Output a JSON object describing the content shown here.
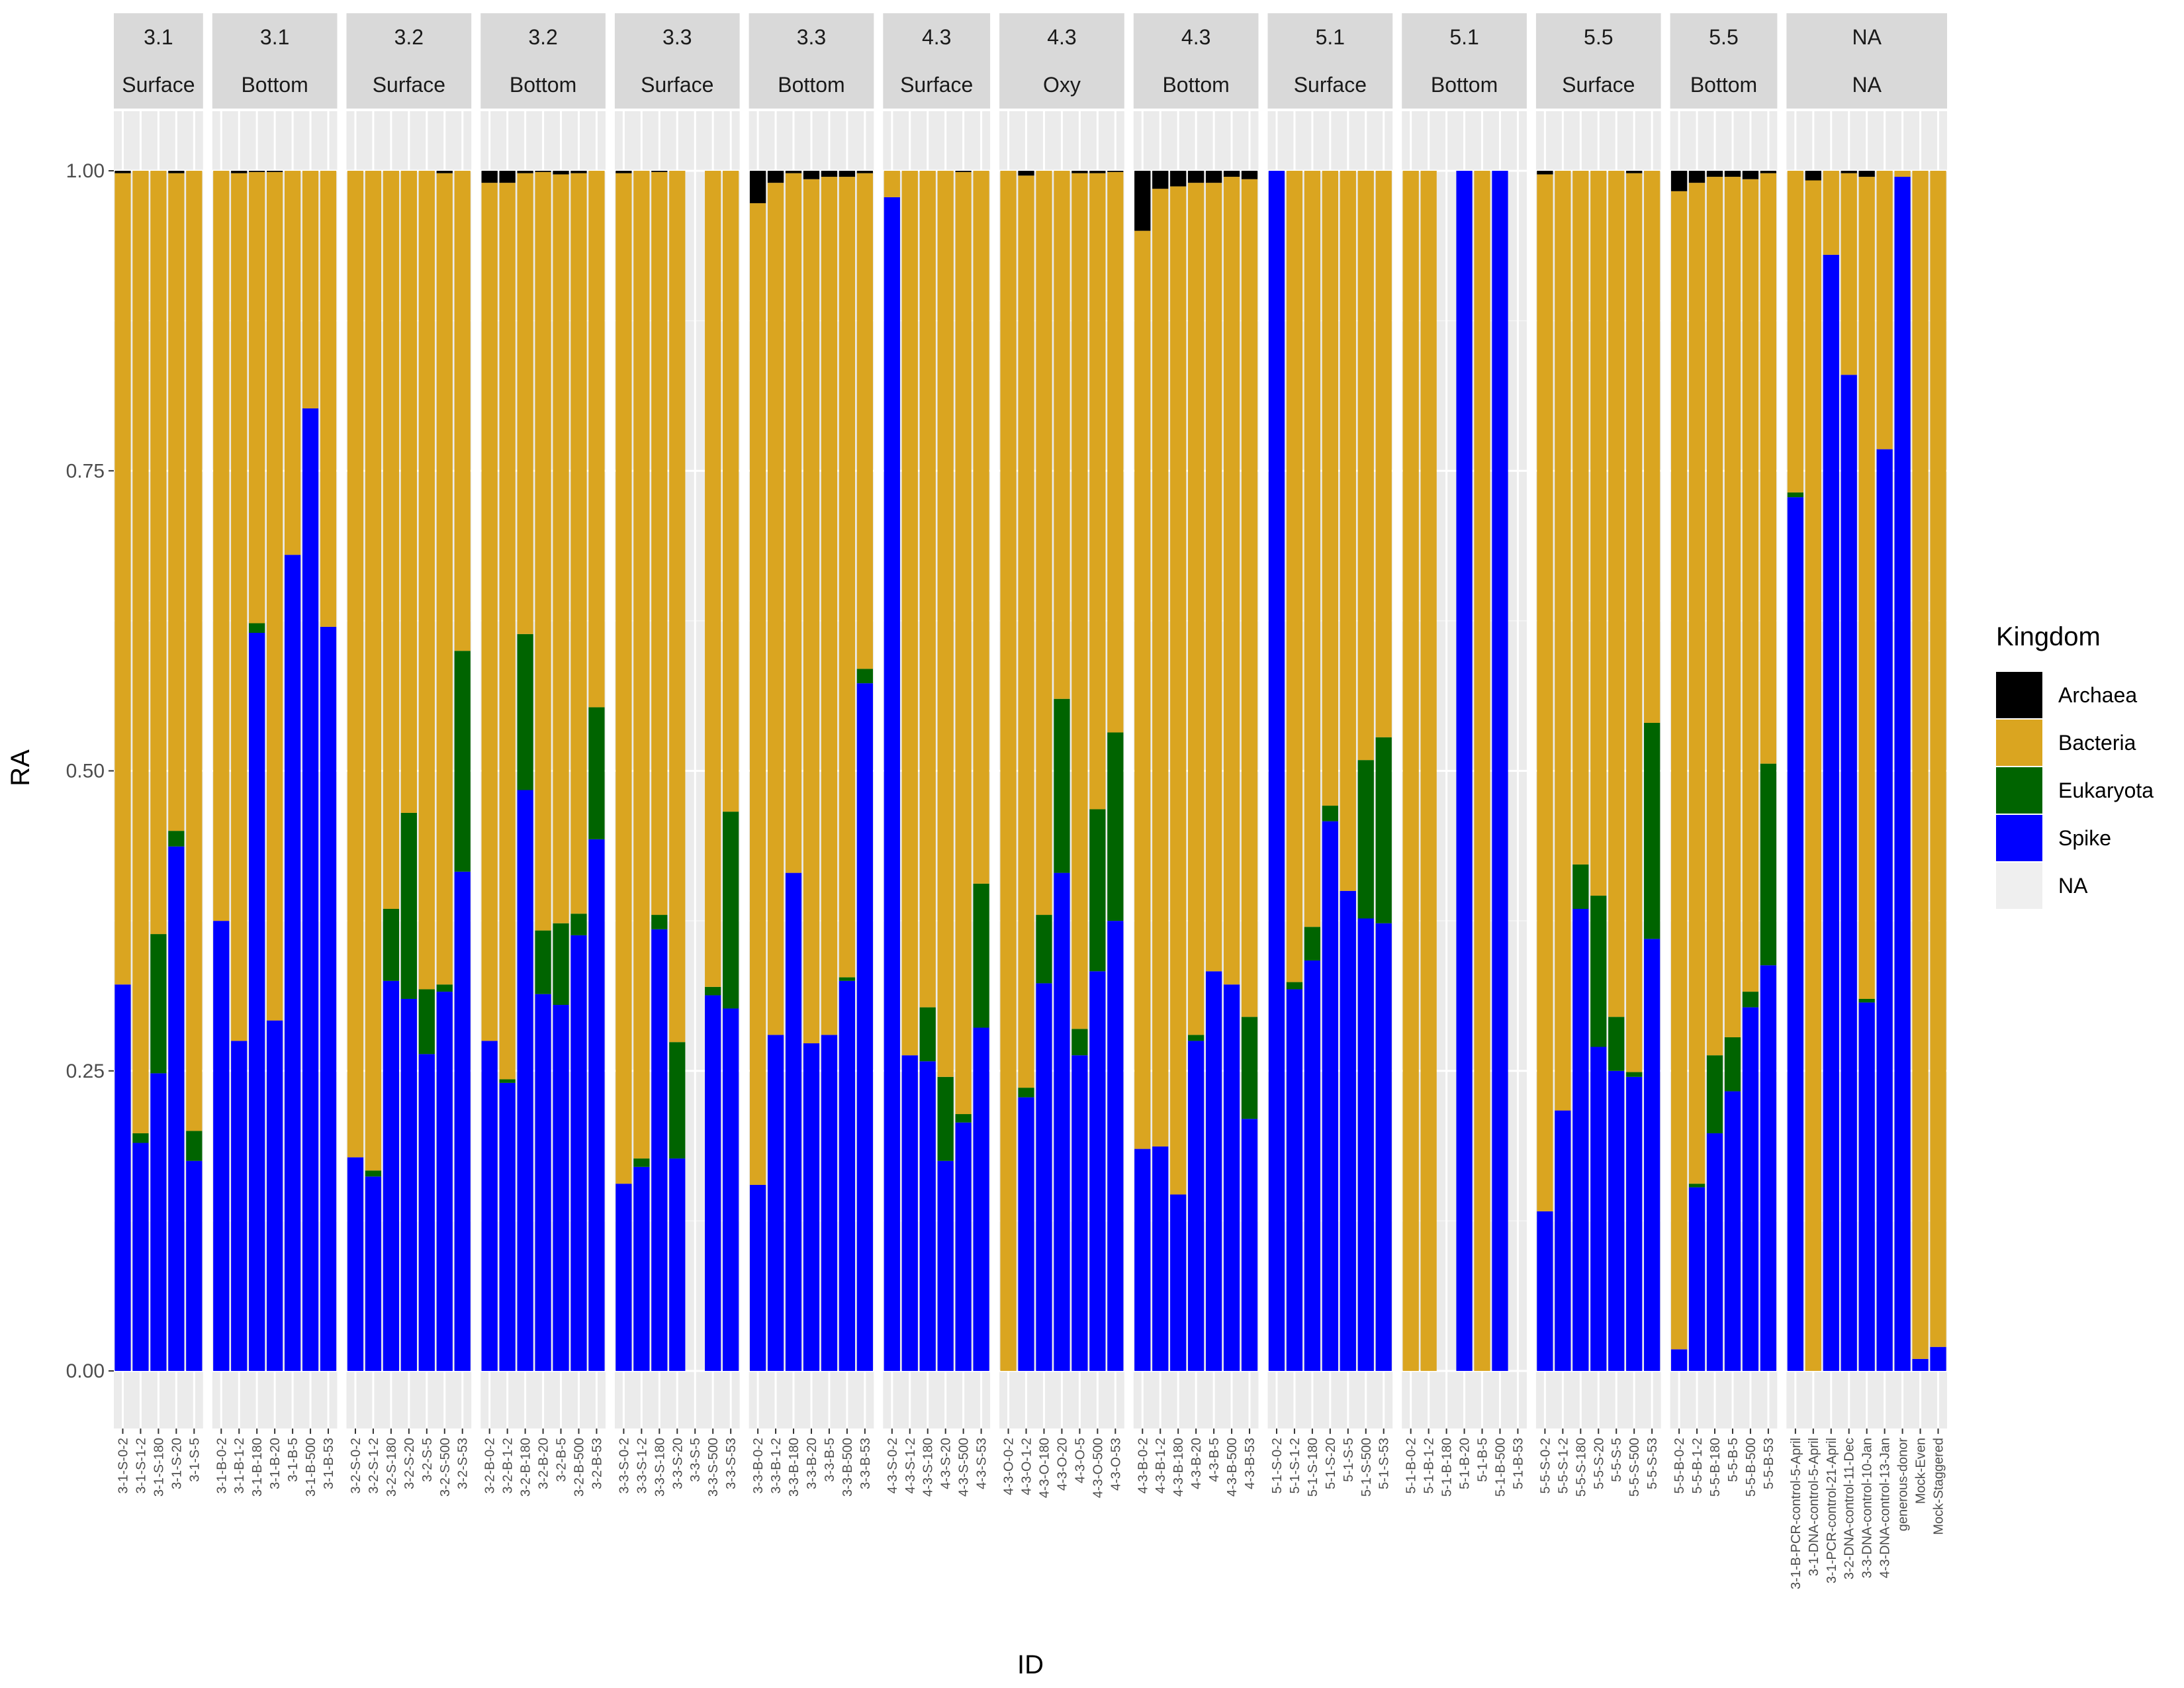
{
  "chart_data": {
    "type": "bar",
    "stacked": true,
    "faceted": true,
    "xlabel": "ID",
    "ylabel": "RA",
    "ylim": [
      -0.1,
      1.05
    ],
    "yticks": [
      0.0,
      0.25,
      0.5,
      0.75,
      1.0
    ],
    "ytick_labels": [
      "0.00",
      "0.25",
      "0.50",
      "0.75",
      "1.00"
    ],
    "grid": true,
    "legend": {
      "title": "Kingdom",
      "position": "right",
      "entries": [
        {
          "name": "Archaea",
          "color": "#000000"
        },
        {
          "name": "Bacteria",
          "color": "#DAA520"
        },
        {
          "name": "Eukaryota",
          "color": "#006400"
        },
        {
          "name": "Spike",
          "color": "#0000FF"
        },
        {
          "name": "NA",
          "color": "#EFEFEF"
        }
      ]
    },
    "stack_order": [
      "Spike",
      "Eukaryota",
      "Bacteria",
      "Archaea"
    ],
    "panels": [
      {
        "strip1": "3.1",
        "strip2": "Surface",
        "samples": [
          {
            "id": "3-1-S-0-2",
            "Spike": 0.322,
            "Eukaryota": 0.0,
            "Bacteria": 0.676,
            "Archaea": 0.002
          },
          {
            "id": "3-1-S-1-2",
            "Spike": 0.19,
            "Eukaryota": 0.008,
            "Bacteria": 0.802,
            "Archaea": 0.0
          },
          {
            "id": "3-1-S-180",
            "Spike": 0.248,
            "Eukaryota": 0.116,
            "Bacteria": 0.636,
            "Archaea": 0.0
          },
          {
            "id": "3-1-S-20",
            "Spike": 0.437,
            "Eukaryota": 0.013,
            "Bacteria": 0.548,
            "Archaea": 0.002
          },
          {
            "id": "3-1-S-5",
            "Spike": 0.175,
            "Eukaryota": 0.025,
            "Bacteria": 0.8,
            "Archaea": 0.0
          }
        ]
      },
      {
        "strip1": "3.1",
        "strip2": "Bottom",
        "samples": [
          {
            "id": "3-1-B-0-2",
            "Spike": 0.375,
            "Eukaryota": 0.0,
            "Bacteria": 0.625,
            "Archaea": 0.0
          },
          {
            "id": "3-1-B-1-2",
            "Spike": 0.275,
            "Eukaryota": 0.0,
            "Bacteria": 0.723,
            "Archaea": 0.002
          },
          {
            "id": "3-1-B-180",
            "Spike": 0.615,
            "Eukaryota": 0.008,
            "Bacteria": 0.376,
            "Archaea": 0.001
          },
          {
            "id": "3-1-B-20",
            "Spike": 0.292,
            "Eukaryota": 0.0,
            "Bacteria": 0.707,
            "Archaea": 0.001
          },
          {
            "id": "3-1-B-5",
            "Spike": 0.68,
            "Eukaryota": 0.0,
            "Bacteria": 0.32,
            "Archaea": 0.0
          },
          {
            "id": "3-1-B-500",
            "Spike": 0.802,
            "Eukaryota": 0.0,
            "Bacteria": 0.198,
            "Archaea": 0.0
          },
          {
            "id": "3-1-B-53",
            "Spike": 0.62,
            "Eukaryota": 0.0,
            "Bacteria": 0.38,
            "Archaea": 0.0
          }
        ]
      },
      {
        "strip1": "3.2",
        "strip2": "Surface",
        "samples": [
          {
            "id": "3-2-S-0-2",
            "Spike": 0.178,
            "Eukaryota": 0.0,
            "Bacteria": 0.822,
            "Archaea": 0.0
          },
          {
            "id": "3-2-S-1-2",
            "Spike": 0.162,
            "Eukaryota": 0.005,
            "Bacteria": 0.833,
            "Archaea": 0.0
          },
          {
            "id": "3-2-S-180",
            "Spike": 0.325,
            "Eukaryota": 0.06,
            "Bacteria": 0.615,
            "Archaea": 0.0
          },
          {
            "id": "3-2-S-20",
            "Spike": 0.31,
            "Eukaryota": 0.155,
            "Bacteria": 0.535,
            "Archaea": 0.0
          },
          {
            "id": "3-2-S-5",
            "Spike": 0.264,
            "Eukaryota": 0.054,
            "Bacteria": 0.682,
            "Archaea": 0.0
          },
          {
            "id": "3-2-S-500",
            "Spike": 0.316,
            "Eukaryota": 0.006,
            "Bacteria": 0.676,
            "Archaea": 0.002
          },
          {
            "id": "3-2-S-53",
            "Spike": 0.416,
            "Eukaryota": 0.184,
            "Bacteria": 0.4,
            "Archaea": 0.0
          }
        ]
      },
      {
        "strip1": "3.2",
        "strip2": "Bottom",
        "samples": [
          {
            "id": "3-2-B-0-2",
            "Spike": 0.275,
            "Eukaryota": 0.0,
            "Bacteria": 0.715,
            "Archaea": 0.01
          },
          {
            "id": "3-2-B-1-2",
            "Spike": 0.24,
            "Eukaryota": 0.003,
            "Bacteria": 0.747,
            "Archaea": 0.01
          },
          {
            "id": "3-2-B-180",
            "Spike": 0.484,
            "Eukaryota": 0.13,
            "Bacteria": 0.384,
            "Archaea": 0.002
          },
          {
            "id": "3-2-B-20",
            "Spike": 0.314,
            "Eukaryota": 0.053,
            "Bacteria": 0.632,
            "Archaea": 0.001
          },
          {
            "id": "3-2-B-5",
            "Spike": 0.305,
            "Eukaryota": 0.068,
            "Bacteria": 0.624,
            "Archaea": 0.003
          },
          {
            "id": "3-2-B-500",
            "Spike": 0.363,
            "Eukaryota": 0.018,
            "Bacteria": 0.617,
            "Archaea": 0.002
          },
          {
            "id": "3-2-B-53",
            "Spike": 0.443,
            "Eukaryota": 0.11,
            "Bacteria": 0.447,
            "Archaea": 0.0
          }
        ]
      },
      {
        "strip1": "3.3",
        "strip2": "Surface",
        "samples": [
          {
            "id": "3-3-S-0-2",
            "Spike": 0.156,
            "Eukaryota": 0.0,
            "Bacteria": 0.842,
            "Archaea": 0.002
          },
          {
            "id": "3-3-S-1-2",
            "Spike": 0.17,
            "Eukaryota": 0.007,
            "Bacteria": 0.823,
            "Archaea": 0.0
          },
          {
            "id": "3-3-S-180",
            "Spike": 0.368,
            "Eukaryota": 0.012,
            "Bacteria": 0.619,
            "Archaea": 0.001
          },
          {
            "id": "3-3-S-20",
            "Spike": 0.177,
            "Eukaryota": 0.097,
            "Bacteria": 0.726,
            "Archaea": 0.0
          },
          {
            "id": "3-3-S-5",
            "Spike": 0.0,
            "Eukaryota": 0.0,
            "Bacteria": 0.0,
            "Archaea": 0.0
          },
          {
            "id": "3-3-S-500",
            "Spike": 0.313,
            "Eukaryota": 0.007,
            "Bacteria": 0.68,
            "Archaea": 0.0
          },
          {
            "id": "3-3-S-53",
            "Spike": 0.302,
            "Eukaryota": 0.164,
            "Bacteria": 0.534,
            "Archaea": 0.0
          }
        ]
      },
      {
        "strip1": "3.3",
        "strip2": "Bottom",
        "samples": [
          {
            "id": "3-3-B-0-2",
            "Spike": 0.155,
            "Eukaryota": 0.0,
            "Bacteria": 0.818,
            "Archaea": 0.027
          },
          {
            "id": "3-3-B-1-2",
            "Spike": 0.28,
            "Eukaryota": 0.0,
            "Bacteria": 0.71,
            "Archaea": 0.01
          },
          {
            "id": "3-3-B-180",
            "Spike": 0.415,
            "Eukaryota": 0.0,
            "Bacteria": 0.583,
            "Archaea": 0.002
          },
          {
            "id": "3-3-B-20",
            "Spike": 0.273,
            "Eukaryota": 0.0,
            "Bacteria": 0.72,
            "Archaea": 0.007
          },
          {
            "id": "3-3-B-5",
            "Spike": 0.28,
            "Eukaryota": 0.0,
            "Bacteria": 0.715,
            "Archaea": 0.005
          },
          {
            "id": "3-3-B-500",
            "Spike": 0.325,
            "Eukaryota": 0.003,
            "Bacteria": 0.667,
            "Archaea": 0.005
          },
          {
            "id": "3-3-B-53",
            "Spike": 0.573,
            "Eukaryota": 0.012,
            "Bacteria": 0.413,
            "Archaea": 0.002
          }
        ]
      },
      {
        "strip1": "4.3",
        "strip2": "Surface",
        "samples": [
          {
            "id": "4-3-S-0-2",
            "Spike": 0.978,
            "Eukaryota": 0.0,
            "Bacteria": 0.022,
            "Archaea": 0.0
          },
          {
            "id": "4-3-S-1-2",
            "Spike": 0.263,
            "Eukaryota": 0.0,
            "Bacteria": 0.737,
            "Archaea": 0.0
          },
          {
            "id": "4-3-S-180",
            "Spike": 0.258,
            "Eukaryota": 0.045,
            "Bacteria": 0.697,
            "Archaea": 0.0
          },
          {
            "id": "4-3-S-20",
            "Spike": 0.175,
            "Eukaryota": 0.07,
            "Bacteria": 0.755,
            "Archaea": 0.0
          },
          {
            "id": "4-3-S-500",
            "Spike": 0.207,
            "Eukaryota": 0.007,
            "Bacteria": 0.785,
            "Archaea": 0.001
          },
          {
            "id": "4-3-S-53",
            "Spike": 0.286,
            "Eukaryota": 0.12,
            "Bacteria": 0.594,
            "Archaea": 0.0
          }
        ]
      },
      {
        "strip1": "4.3",
        "strip2": "Oxy",
        "samples": [
          {
            "id": "4-3-O-0-2",
            "Spike": 0.0,
            "Eukaryota": 0.0,
            "Bacteria": 1.0,
            "Archaea": 0.0
          },
          {
            "id": "4-3-O-1-2",
            "Spike": 0.228,
            "Eukaryota": 0.008,
            "Bacteria": 0.76,
            "Archaea": 0.004
          },
          {
            "id": "4-3-O-180",
            "Spike": 0.323,
            "Eukaryota": 0.057,
            "Bacteria": 0.62,
            "Archaea": 0.0
          },
          {
            "id": "4-3-O-20",
            "Spike": 0.415,
            "Eukaryota": 0.145,
            "Bacteria": 0.44,
            "Archaea": 0.0
          },
          {
            "id": "4-3-O-5",
            "Spike": 0.263,
            "Eukaryota": 0.022,
            "Bacteria": 0.713,
            "Archaea": 0.002
          },
          {
            "id": "4-3-O-500",
            "Spike": 0.333,
            "Eukaryota": 0.135,
            "Bacteria": 0.53,
            "Archaea": 0.002
          },
          {
            "id": "4-3-O-53",
            "Spike": 0.375,
            "Eukaryota": 0.157,
            "Bacteria": 0.467,
            "Archaea": 0.001
          }
        ]
      },
      {
        "strip1": "4.3",
        "strip2": "Bottom",
        "samples": [
          {
            "id": "4-3-B-0-2",
            "Spike": 0.185,
            "Eukaryota": 0.0,
            "Bacteria": 0.765,
            "Archaea": 0.05
          },
          {
            "id": "4-3-B-1-2",
            "Spike": 0.187,
            "Eukaryota": 0.0,
            "Bacteria": 0.798,
            "Archaea": 0.015
          },
          {
            "id": "4-3-B-180",
            "Spike": 0.147,
            "Eukaryota": 0.0,
            "Bacteria": 0.84,
            "Archaea": 0.013
          },
          {
            "id": "4-3-B-20",
            "Spike": 0.275,
            "Eukaryota": 0.005,
            "Bacteria": 0.71,
            "Archaea": 0.01
          },
          {
            "id": "4-3-B-5",
            "Spike": 0.333,
            "Eukaryota": 0.0,
            "Bacteria": 0.657,
            "Archaea": 0.01
          },
          {
            "id": "4-3-B-500",
            "Spike": 0.322,
            "Eukaryota": 0.0,
            "Bacteria": 0.673,
            "Archaea": 0.005
          },
          {
            "id": "4-3-B-53",
            "Spike": 0.21,
            "Eukaryota": 0.085,
            "Bacteria": 0.698,
            "Archaea": 0.007
          }
        ]
      },
      {
        "strip1": "5.1",
        "strip2": "Surface",
        "samples": [
          {
            "id": "5-1-S-0-2",
            "Spike": 1.0,
            "Eukaryota": 0.0,
            "Bacteria": 0.0,
            "Archaea": 0.0
          },
          {
            "id": "5-1-S-1-2",
            "Spike": 0.318,
            "Eukaryota": 0.006,
            "Bacteria": 0.676,
            "Archaea": 0.0
          },
          {
            "id": "5-1-S-180",
            "Spike": 0.342,
            "Eukaryota": 0.028,
            "Bacteria": 0.63,
            "Archaea": 0.0
          },
          {
            "id": "5-1-S-20",
            "Spike": 0.458,
            "Eukaryota": 0.013,
            "Bacteria": 0.529,
            "Archaea": 0.0
          },
          {
            "id": "5-1-S-5",
            "Spike": 0.4,
            "Eukaryota": 0.0,
            "Bacteria": 0.6,
            "Archaea": 0.0
          },
          {
            "id": "5-1-S-500",
            "Spike": 0.377,
            "Eukaryota": 0.132,
            "Bacteria": 0.491,
            "Archaea": 0.0
          },
          {
            "id": "5-1-S-53",
            "Spike": 0.373,
            "Eukaryota": 0.155,
            "Bacteria": 0.472,
            "Archaea": 0.0
          }
        ]
      },
      {
        "strip1": "5.1",
        "strip2": "Bottom",
        "samples": [
          {
            "id": "5-1-B-0-2",
            "Spike": 0.0,
            "Eukaryota": 0.0,
            "Bacteria": 1.0,
            "Archaea": 0.0
          },
          {
            "id": "5-1-B-1-2",
            "Spike": 0.0,
            "Eukaryota": 0.0,
            "Bacteria": 1.0,
            "Archaea": 0.0
          },
          {
            "id": "5-1-B-180",
            "Spike": 0.0,
            "Eukaryota": 0.0,
            "Bacteria": 0.0,
            "Archaea": 0.0
          },
          {
            "id": "5-1-B-20",
            "Spike": 1.0,
            "Eukaryota": 0.0,
            "Bacteria": 0.0,
            "Archaea": 0.0
          },
          {
            "id": "5-1-B-5",
            "Spike": 0.0,
            "Eukaryota": 0.0,
            "Bacteria": 1.0,
            "Archaea": 0.0
          },
          {
            "id": "5-1-B-500",
            "Spike": 1.0,
            "Eukaryota": 0.0,
            "Bacteria": 0.0,
            "Archaea": 0.0
          },
          {
            "id": "5-1-B-53",
            "Spike": 0.0,
            "Eukaryota": 0.0,
            "Bacteria": 0.0,
            "Archaea": 0.0
          }
        ]
      },
      {
        "strip1": "5.5",
        "strip2": "Surface",
        "samples": [
          {
            "id": "5-5-S-0-2",
            "Spike": 0.133,
            "Eukaryota": 0.0,
            "Bacteria": 0.864,
            "Archaea": 0.003
          },
          {
            "id": "5-5-S-1-2",
            "Spike": 0.217,
            "Eukaryota": 0.0,
            "Bacteria": 0.783,
            "Archaea": 0.0
          },
          {
            "id": "5-5-S-180",
            "Spike": 0.385,
            "Eukaryota": 0.037,
            "Bacteria": 0.578,
            "Archaea": 0.0
          },
          {
            "id": "5-5-S-20",
            "Spike": 0.27,
            "Eukaryota": 0.126,
            "Bacteria": 0.604,
            "Archaea": 0.0
          },
          {
            "id": "5-5-S-5",
            "Spike": 0.25,
            "Eukaryota": 0.045,
            "Bacteria": 0.705,
            "Archaea": 0.0
          },
          {
            "id": "5-5-S-500",
            "Spike": 0.245,
            "Eukaryota": 0.004,
            "Bacteria": 0.749,
            "Archaea": 0.002
          },
          {
            "id": "5-5-S-53",
            "Spike": 0.36,
            "Eukaryota": 0.18,
            "Bacteria": 0.46,
            "Archaea": 0.0
          }
        ]
      },
      {
        "strip1": "5.5",
        "strip2": "Bottom",
        "samples": [
          {
            "id": "5-5-B-0-2",
            "Spike": 0.018,
            "Eukaryota": 0.0,
            "Bacteria": 0.965,
            "Archaea": 0.017
          },
          {
            "id": "5-5-B-1-2",
            "Spike": 0.153,
            "Eukaryota": 0.003,
            "Bacteria": 0.834,
            "Archaea": 0.01
          },
          {
            "id": "5-5-B-180",
            "Spike": 0.198,
            "Eukaryota": 0.065,
            "Bacteria": 0.732,
            "Archaea": 0.005
          },
          {
            "id": "5-5-B-5",
            "Spike": 0.233,
            "Eukaryota": 0.045,
            "Bacteria": 0.717,
            "Archaea": 0.005
          },
          {
            "id": "5-5-B-500",
            "Spike": 0.303,
            "Eukaryota": 0.013,
            "Bacteria": 0.677,
            "Archaea": 0.007
          },
          {
            "id": "5-5-B-53",
            "Spike": 0.338,
            "Eukaryota": 0.168,
            "Bacteria": 0.492,
            "Archaea": 0.002
          }
        ]
      },
      {
        "strip1": "NA",
        "strip2": "NA",
        "samples": [
          {
            "id": "3-1-B-PCR-control-5-April",
            "Spike": 0.728,
            "Eukaryota": 0.004,
            "Bacteria": 0.268,
            "Archaea": 0.0
          },
          {
            "id": "3-1-DNA-control-5-April",
            "Spike": 0.0,
            "Eukaryota": 0.0,
            "Bacteria": 0.992,
            "Archaea": 0.008
          },
          {
            "id": "3-1-PCR-control-21-April",
            "Spike": 0.93,
            "Eukaryota": 0.0,
            "Bacteria": 0.07,
            "Archaea": 0.0
          },
          {
            "id": "3-2-DNA-control-11-Dec",
            "Spike": 0.83,
            "Eukaryota": 0.0,
            "Bacteria": 0.168,
            "Archaea": 0.002
          },
          {
            "id": "3-3-DNA-control-10-Jan",
            "Spike": 0.307,
            "Eukaryota": 0.003,
            "Bacteria": 0.685,
            "Archaea": 0.005
          },
          {
            "id": "4-3-DNA-control-13-Jan",
            "Spike": 0.768,
            "Eukaryota": 0.0,
            "Bacteria": 0.232,
            "Archaea": 0.0
          },
          {
            "id": "generous-donor",
            "Spike": 0.995,
            "Eukaryota": 0.0,
            "Bacteria": 0.005,
            "Archaea": 0.0
          },
          {
            "id": "Mock-Even",
            "Spike": 0.01,
            "Eukaryota": 0.0,
            "Bacteria": 0.99,
            "Archaea": 0.0
          },
          {
            "id": "Mock-Staggered",
            "Spike": 0.02,
            "Eukaryota": 0.0,
            "Bacteria": 0.98,
            "Archaea": 0.0
          }
        ]
      }
    ]
  }
}
